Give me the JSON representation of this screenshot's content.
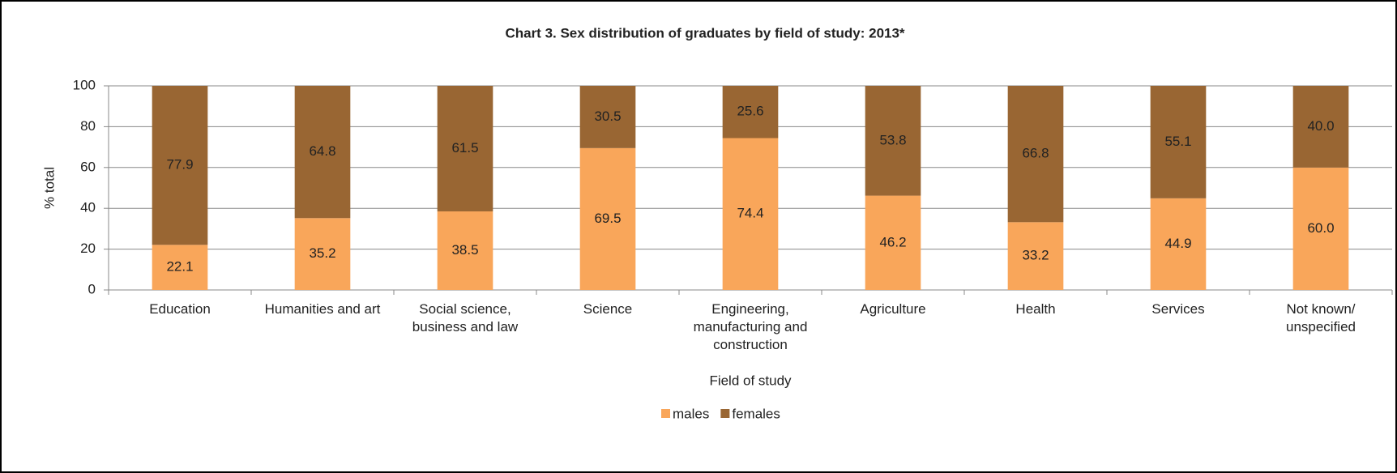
{
  "chart_data": {
    "type": "bar",
    "stacked": true,
    "title": "Chart 3.  Sex distribution of graduates by field of study: 2013*",
    "x_label": "Field of study",
    "y_label": "% total",
    "categories": [
      "Education",
      "Humanities and art",
      "Social science, business and law",
      "Science",
      "Engineering, manufacturing and construction",
      "Agriculture",
      "Health",
      "Services",
      "Not known/ unspecified"
    ],
    "series": [
      {
        "name": "males",
        "color": "#f9a65a",
        "values": [
          22.1,
          35.2,
          38.5,
          69.5,
          74.4,
          46.2,
          33.2,
          44.9,
          60.0
        ],
        "value_labels": [
          "22.1",
          "35.2",
          "38.5",
          "69.5",
          "74.4",
          "46.2",
          "33.2",
          "44.9",
          "60.0"
        ]
      },
      {
        "name": "females",
        "color": "#996633",
        "values": [
          77.9,
          64.8,
          61.5,
          30.5,
          25.6,
          53.8,
          66.8,
          55.1,
          40.0
        ],
        "value_labels": [
          "77.9",
          "64.8",
          "61.5",
          "30.5",
          "25.6",
          "53.8",
          "66.8",
          "55.1",
          "40.0"
        ]
      }
    ],
    "ylim": [
      0,
      100
    ],
    "yticks": [
      0,
      20,
      40,
      60,
      80,
      100
    ],
    "grid": true,
    "legend": "bottom"
  }
}
